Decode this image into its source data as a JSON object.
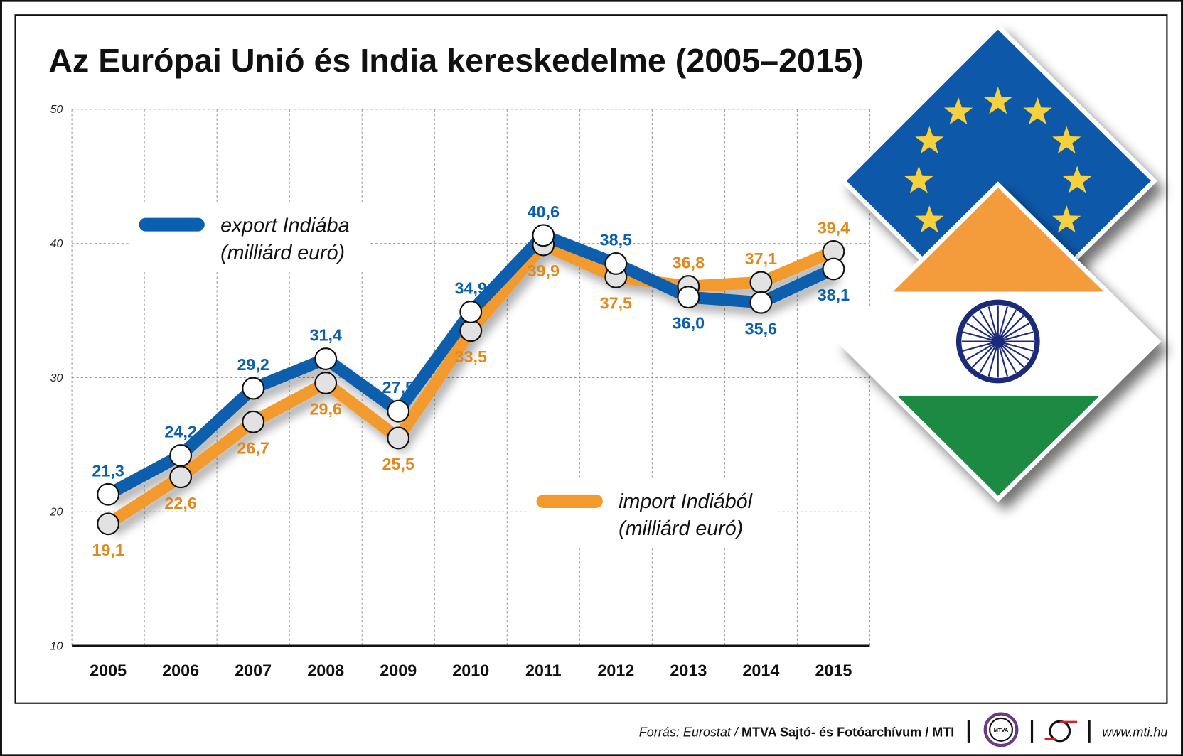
{
  "title": "Az Európai Unió és India kereskedelme (2005–2015)",
  "colors": {
    "export": "#0a5fae",
    "import": "#f39a2e",
    "eu_blue": "#0b59a8",
    "star": "#f7d03c",
    "saffron": "#f49c3b",
    "green": "#1b8a42",
    "chakra": "#1b2a7a"
  },
  "chart_data": {
    "type": "line",
    "title": "Az Európai Unió és India kereskedelme (2005–2015)",
    "categories": [
      "2005",
      "2006",
      "2007",
      "2008",
      "2009",
      "2010",
      "2011",
      "2012",
      "2013",
      "2014",
      "2015"
    ],
    "ylim": [
      10,
      50
    ],
    "yticks": [
      "10",
      "20",
      "30",
      "40",
      "50"
    ],
    "grid": true,
    "series": [
      {
        "name": "export Indiába",
        "name2": "(milliárd euró)",
        "values": [
          21.3,
          24.2,
          29.2,
          31.4,
          27.5,
          34.9,
          40.6,
          38.5,
          36.0,
          35.6,
          38.1
        ],
        "labels": [
          "21,3",
          "24,2",
          "29,2",
          "31,4",
          "27,5",
          "34,9",
          "40,6",
          "38,5",
          "36,0",
          "35,6",
          "38,1"
        ]
      },
      {
        "name": "import Indiából",
        "name2": "(milliárd euró)",
        "values": [
          19.1,
          22.6,
          26.7,
          29.6,
          25.5,
          33.5,
          39.9,
          37.5,
          36.8,
          37.1,
          39.4
        ],
        "labels": [
          "19,1",
          "22,6",
          "26,7",
          "29,6",
          "25,5",
          "33,5",
          "39,9",
          "37,5",
          "36,8",
          "37,1",
          "39,4"
        ]
      }
    ]
  },
  "footer": {
    "source_prefix": "Forrás: Eurostat / ",
    "source_bold": "MTVA Sajtó- és Fotóarchívum",
    "source_suffix": " / MTI",
    "logo_text": "MTVA",
    "url": "www.mti.hu"
  }
}
